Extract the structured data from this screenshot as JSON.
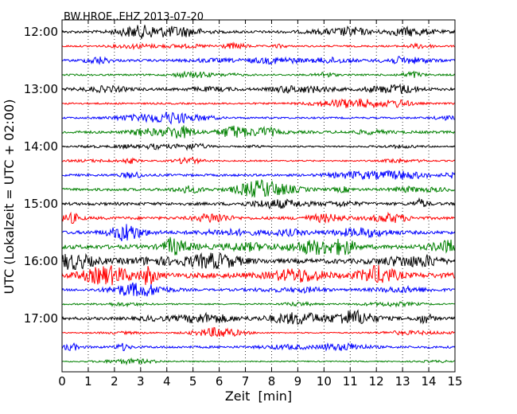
{
  "chart_data": {
    "type": "line",
    "title": "BW.HROE..EHZ 2013-07-20",
    "xlabel": "Zeit  [min]",
    "ylabel": "UTC (Lokalzeit = UTC + 02:00)",
    "xlim": [
      0,
      15
    ],
    "x_ticks": [
      "0",
      "1",
      "2",
      "3",
      "4",
      "5",
      "6",
      "7",
      "8",
      "9",
      "10",
      "11",
      "12",
      "13",
      "14",
      "15"
    ],
    "y_ticks": [
      "12:00",
      "13:00",
      "14:00",
      "15:00",
      "16:00",
      "17:00"
    ],
    "grid": "vertical dotted",
    "trace_colors": [
      "#000000",
      "#ff0000",
      "#0000ff",
      "#008000"
    ],
    "traces": [
      {
        "start": "12:00",
        "amplitude": 0.9
      },
      {
        "start": "12:15",
        "amplitude": 0.6
      },
      {
        "start": "12:30",
        "amplitude": 0.8
      },
      {
        "start": "12:45",
        "amplitude": 0.6
      },
      {
        "start": "13:00",
        "amplitude": 0.9
      },
      {
        "start": "13:15",
        "amplitude": 0.6
      },
      {
        "start": "13:30",
        "amplitude": 0.6
      },
      {
        "start": "13:45",
        "amplitude": 0.9
      },
      {
        "start": "14:00",
        "amplitude": 0.5
      },
      {
        "start": "14:15",
        "amplitude": 0.5
      },
      {
        "start": "14:30",
        "amplitude": 0.8
      },
      {
        "start": "14:45",
        "amplitude": 0.9
      },
      {
        "start": "15:00",
        "amplitude": 1.0
      },
      {
        "start": "15:15",
        "amplitude": 1.0
      },
      {
        "start": "15:30",
        "amplitude": 1.1
      },
      {
        "start": "15:45",
        "amplitude": 1.4
      },
      {
        "start": "16:00",
        "amplitude": 1.6
      },
      {
        "start": "16:15",
        "amplitude": 1.8
      },
      {
        "start": "16:30",
        "amplitude": 0.8
      },
      {
        "start": "16:45",
        "amplitude": 0.5
      },
      {
        "start": "17:00",
        "amplitude": 1.0
      },
      {
        "start": "17:15",
        "amplitude": 0.4
      },
      {
        "start": "17:30",
        "amplitude": 0.8
      },
      {
        "start": "17:45",
        "amplitude": 0.4
      }
    ]
  }
}
